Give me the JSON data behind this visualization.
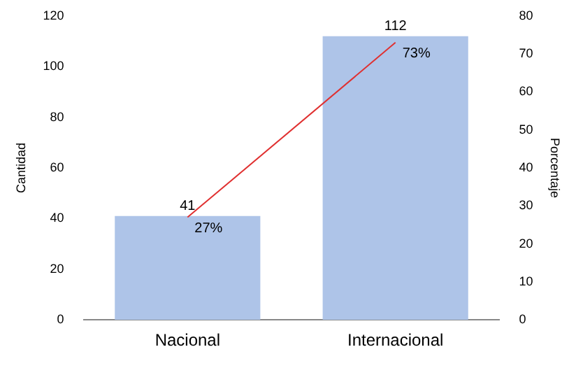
{
  "chart_data": {
    "type": "bar",
    "categories": [
      "Nacional",
      "Internacional"
    ],
    "ylabel": "Cantidad",
    "y2label": "Porcentaje",
    "ylim": [
      0,
      120
    ],
    "yticks": [
      0,
      20,
      40,
      60,
      80,
      100,
      120
    ],
    "y2lim": [
      0,
      80
    ],
    "y2ticks": [
      0,
      10,
      20,
      30,
      40,
      50,
      60,
      70,
      80
    ],
    "grid": false,
    "legend": false,
    "marker": "none",
    "series": [
      {
        "color": "#aec4e8",
        "values": [
          41,
          112
        ],
        "value_labels": [
          "41",
          "112"
        ]
      },
      {
        "type": "line",
        "axis": "y2",
        "color": "#e03030",
        "values": [
          27,
          73
        ],
        "value_labels": [
          "27%",
          "73%"
        ]
      }
    ]
  }
}
